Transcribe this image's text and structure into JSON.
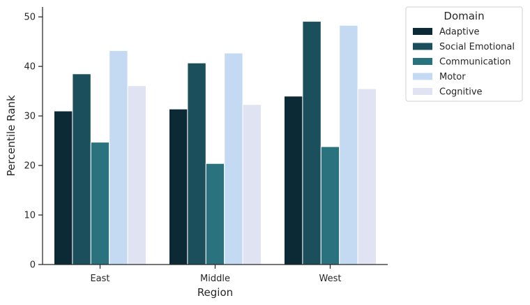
{
  "chart_data": {
    "type": "bar",
    "xlabel": "Region",
    "ylabel": "Percentile Rank",
    "categories": [
      "East",
      "Middle",
      "West"
    ],
    "ylim": [
      0,
      52
    ],
    "yticks": [
      0,
      10,
      20,
      30,
      40,
      50
    ],
    "grid": false,
    "legend": {
      "title": "Domain",
      "placement": "outside upper right"
    },
    "series": [
      {
        "name": "Adaptive",
        "color": "#0b2a35",
        "values": [
          31.0,
          31.4,
          34.0
        ]
      },
      {
        "name": "Social Emotional",
        "color": "#1b4f5c",
        "values": [
          38.5,
          40.7,
          49.1
        ]
      },
      {
        "name": "Communication",
        "color": "#2a727e",
        "values": [
          24.7,
          20.4,
          23.8
        ]
      },
      {
        "name": "Motor",
        "color": "#c4daf2",
        "values": [
          43.2,
          42.7,
          48.3
        ]
      },
      {
        "name": "Cognitive",
        "color": "#e0e3f2",
        "values": [
          36.1,
          32.3,
          35.5
        ]
      }
    ]
  }
}
